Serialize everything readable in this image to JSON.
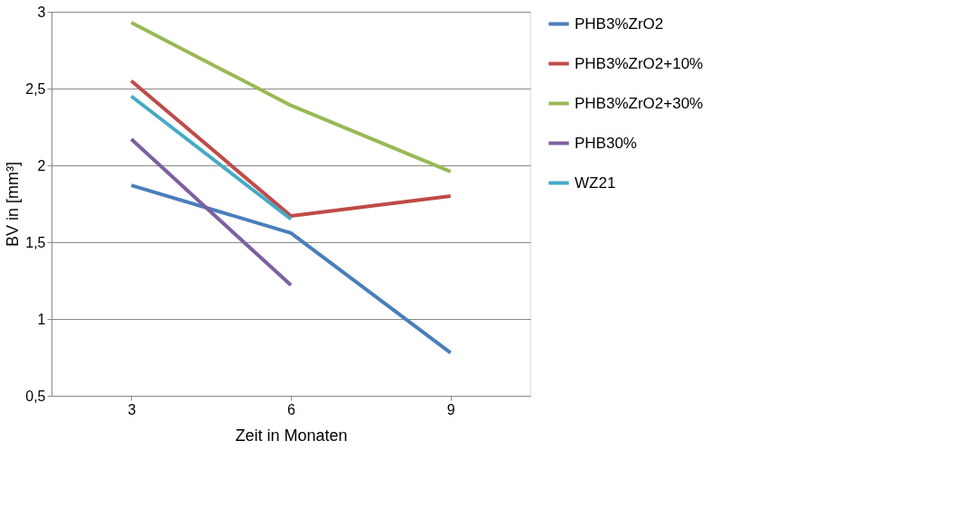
{
  "chart_data": {
    "type": "line",
    "xlabel": "Zeit in Monaten",
    "ylabel": "BV in [mm³]",
    "categories": [
      "3",
      "6",
      "9"
    ],
    "series": [
      {
        "name": "PHB3%ZrO2",
        "color": "#4a7ebb",
        "values": [
          1.87,
          1.56,
          0.78
        ]
      },
      {
        "name": "PHB3%ZrO2+10%",
        "color": "#be4b48",
        "values": [
          2.55,
          1.67,
          1.8
        ]
      },
      {
        "name": "PHB3%ZrO2+30%",
        "color": "#98b954",
        "values": [
          2.93,
          2.39,
          1.96
        ]
      },
      {
        "name": "PHB30%",
        "color": "#7d60a0",
        "values": [
          2.17,
          1.22,
          null
        ]
      },
      {
        "name": "WZ21",
        "color": "#46aac5",
        "values": [
          2.45,
          1.65,
          null
        ]
      }
    ],
    "ylim": [
      0.5,
      3
    ],
    "yticks": [
      {
        "value": 0.5,
        "label": "0,5"
      },
      1,
      {
        "value": 1.5,
        "label": "1,5"
      },
      2,
      {
        "value": 2.5,
        "label": "2,5"
      },
      3
    ],
    "grid": "y",
    "legend": "right",
    "line_style": "solid"
  }
}
